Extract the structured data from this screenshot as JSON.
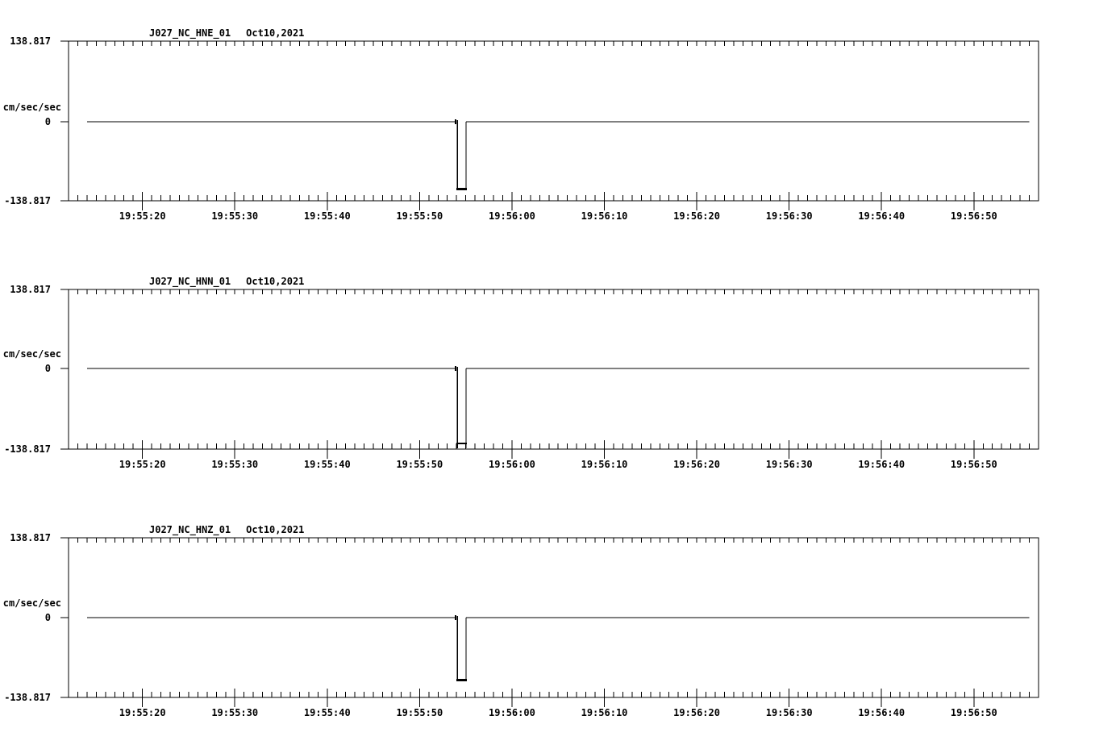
{
  "page": {
    "background": "#ffffff",
    "ink": "#000000"
  },
  "chart_data": [
    {
      "type": "line",
      "title": "J027_NC_HNE_01",
      "date": "Oct10,2021",
      "ylabel": "cm/sec/sec",
      "ylim": [
        -138.817,
        138.817
      ],
      "ytick_labels": [
        "138.817",
        "0",
        "-138.817"
      ],
      "x_start_time": "19:55:12",
      "x_end_time": "19:56:57",
      "x_minor_tick_seconds": 1,
      "x_major_ticks": [
        "19:55:20",
        "19:55:30",
        "19:55:40",
        "19:55:50",
        "19:56:00",
        "19:56:10",
        "19:56:20",
        "19:56:30",
        "19:56:40",
        "19:56:50"
      ],
      "baseline_value": 0,
      "trace_start_time": "19:55:14",
      "trace_end_time": "19:56:56",
      "pulse": {
        "start_time": "19:55:54",
        "end_time": "19:55:55",
        "onset_value": 4,
        "floor_value": -118,
        "tip_value": -118
      }
    },
    {
      "type": "line",
      "title": "J027_NC_HNN_01",
      "date": "Oct10,2021",
      "ylabel": "cm/sec/sec",
      "ylim": [
        -138.817,
        138.817
      ],
      "ytick_labels": [
        "138.817",
        "0",
        "-138.817"
      ],
      "x_start_time": "19:55:12",
      "x_end_time": "19:56:57",
      "x_minor_tick_seconds": 1,
      "x_major_ticks": [
        "19:55:20",
        "19:55:30",
        "19:55:40",
        "19:55:50",
        "19:56:00",
        "19:56:10",
        "19:56:20",
        "19:56:30",
        "19:56:40",
        "19:56:50"
      ],
      "baseline_value": 0,
      "trace_start_time": "19:55:14",
      "trace_end_time": "19:56:56",
      "pulse": {
        "start_time": "19:55:54",
        "end_time": "19:55:55",
        "onset_value": 4,
        "floor_value": -129,
        "tip_value": -138.8
      }
    },
    {
      "type": "line",
      "title": "J027_NC_HNZ_01",
      "date": "Oct10,2021",
      "ylabel": "cm/sec/sec",
      "ylim": [
        -138.817,
        138.817
      ],
      "ytick_labels": [
        "138.817",
        "0",
        "-138.817"
      ],
      "x_start_time": "19:55:12",
      "x_end_time": "19:56:57",
      "x_minor_tick_seconds": 1,
      "x_major_ticks": [
        "19:55:20",
        "19:55:30",
        "19:55:40",
        "19:55:50",
        "19:56:00",
        "19:56:10",
        "19:56:20",
        "19:56:30",
        "19:56:40",
        "19:56:50"
      ],
      "baseline_value": 0,
      "trace_start_time": "19:55:14",
      "trace_end_time": "19:56:56",
      "pulse": {
        "start_time": "19:55:54",
        "end_time": "19:55:55",
        "onset_value": 4,
        "floor_value": -109,
        "tip_value": -109
      }
    }
  ]
}
